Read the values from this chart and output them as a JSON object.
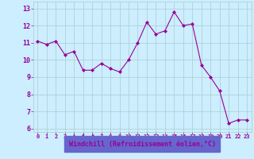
{
  "x": [
    0,
    1,
    2,
    3,
    4,
    5,
    6,
    7,
    8,
    9,
    10,
    11,
    12,
    13,
    14,
    15,
    16,
    17,
    18,
    19,
    20,
    21,
    22,
    23
  ],
  "y": [
    11.1,
    10.9,
    11.1,
    10.3,
    10.5,
    9.4,
    9.4,
    9.8,
    9.5,
    9.3,
    10.0,
    11.0,
    12.2,
    11.5,
    11.7,
    12.8,
    12.0,
    12.1,
    9.7,
    9.0,
    8.2,
    6.3,
    6.5,
    6.5
  ],
  "line_color": "#990099",
  "marker": "D",
  "marker_size": 2,
  "bg_color": "#cceeff",
  "grid_color": "#aacccc",
  "xlabel": "Windchill (Refroidissement éolien,°C)",
  "xlabel_color": "#990099",
  "xlabel_bg": "#6666cc",
  "tick_color": "#990099",
  "ylabel_ticks": [
    6,
    7,
    8,
    9,
    10,
    11,
    12,
    13
  ],
  "xlim": [
    -0.5,
    23.5
  ],
  "ylim": [
    5.8,
    13.4
  ]
}
